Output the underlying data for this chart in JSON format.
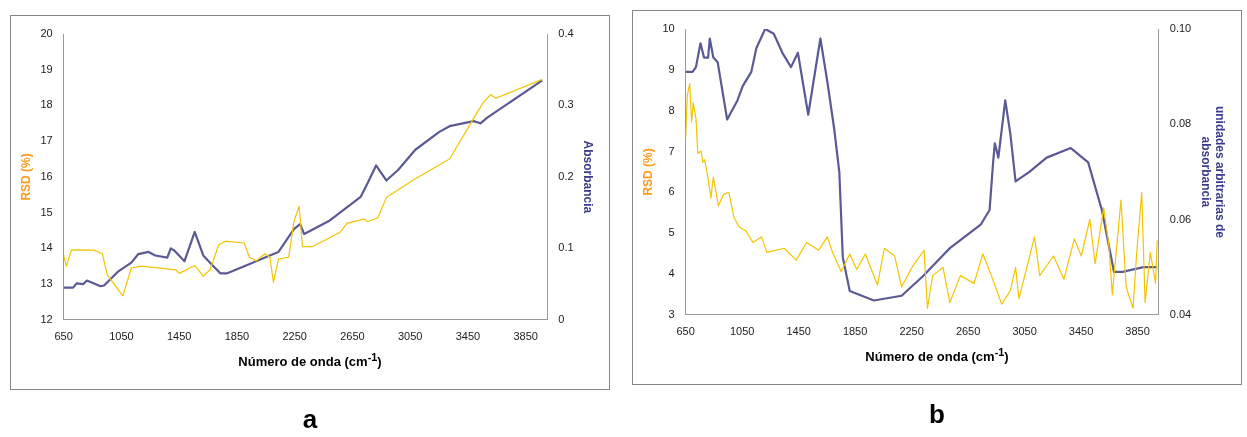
{
  "chart_data": [
    {
      "type": "line",
      "xlabel": "Número de onda (cm$^{-1}$)",
      "ylabel": "RSD (%)",
      "y2label": "Absorbancia",
      "annotations": [
        "a"
      ],
      "xlim": [
        650,
        4000
      ],
      "xticks": [
        650,
        1050,
        1450,
        1850,
        2250,
        2650,
        3050,
        3450,
        3850
      ],
      "ylim": [
        12,
        20
      ],
      "yticks": [
        12,
        13,
        14,
        15,
        16,
        17,
        18,
        19,
        20
      ],
      "y2lim": [
        0,
        0.4
      ],
      "y2ticks": [
        0,
        0.1,
        0.2,
        0.3,
        0.4
      ],
      "grid": false,
      "legend": false,
      "marker": "none",
      "line_style": "solid",
      "series": [
        {
          "color": "#f5c400",
          "x": [
            650,
            669,
            705,
            859,
            918,
            953,
            1060,
            1119,
            1190,
            1427,
            1451,
            1558,
            1617,
            1664,
            1724,
            1771,
            1901,
            1937,
            1984,
            2044,
            2079,
            2103,
            2138,
            2209,
            2245,
            2281,
            2304,
            2375,
            2565,
            2612,
            2731,
            2755,
            2826,
            2885,
            3086,
            3323,
            3442,
            3513,
            3560,
            3608,
            3643,
            3965
          ],
          "values": [
            13.8,
            13.5,
            13.96,
            13.95,
            13.85,
            13.25,
            12.67,
            13.45,
            13.5,
            13.4,
            13.3,
            13.52,
            13.22,
            13.4,
            14.1,
            14.2,
            14.15,
            13.75,
            13.65,
            13.85,
            13.75,
            13.05,
            13.7,
            13.75,
            14.75,
            15.18,
            14.05,
            14.05,
            14.45,
            14.7,
            14.82,
            14.75,
            14.85,
            15.42,
            15.95,
            16.5,
            17.31,
            17.8,
            18.1,
            18.3,
            18.2,
            18.73
          ]
        },
        {
          "color": "#5a5a96",
          "axis": "y2",
          "x": [
            650,
            716,
            740,
            787,
            811,
            906,
            930,
            1024,
            1119,
            1167,
            1238,
            1285,
            1368,
            1392,
            1416,
            1487,
            1558,
            1617,
            1664,
            1735,
            1783,
            1901,
            2020,
            2138,
            2245,
            2288,
            2316,
            2494,
            2707,
            2755,
            2814,
            2885,
            2968,
            3086,
            3252,
            3323,
            3489,
            3537,
            3584,
            3965
          ],
          "values": [
            0.045,
            0.045,
            0.051,
            0.05,
            0.055,
            0.047,
            0.048,
            0.067,
            0.08,
            0.092,
            0.095,
            0.09,
            0.087,
            0.1,
            0.097,
            0.082,
            0.123,
            0.09,
            0.08,
            0.065,
            0.065,
            0.075,
            0.085,
            0.095,
            0.127,
            0.134,
            0.12,
            0.139,
            0.172,
            0.191,
            0.216,
            0.195,
            0.21,
            0.238,
            0.263,
            0.271,
            0.278,
            0.275,
            0.283,
            0.335
          ]
        }
      ]
    },
    {
      "type": "line",
      "xlabel": "Número de onda (cm$^{-1}$)",
      "ylabel": "RSD (%)",
      "y2label": "unidades arbitrarias de absorbancia",
      "annotations": [
        "b"
      ],
      "xlim": [
        650,
        4000
      ],
      "xticks": [
        650,
        1050,
        1450,
        1850,
        2250,
        2650,
        3050,
        3450,
        3850
      ],
      "ylim": [
        3,
        10
      ],
      "yticks": [
        3,
        4,
        5,
        6,
        7,
        8,
        9,
        10
      ],
      "y2lim": [
        0.04,
        0.1
      ],
      "y2ticks": [
        {
          "value": 0.04,
          "label": "0.04"
        },
        {
          "value": 0.06,
          "label": "0.06"
        },
        {
          "value": 0.08,
          "label": "0.08"
        },
        {
          "value": 0.1,
          "label": "0.10"
        }
      ],
      "grid": false,
      "legend": false,
      "marker": "none",
      "line_style": "solid",
      "series": [
        {
          "color": "#f5c400",
          "x": [
            650,
            662,
            679,
            692,
            704,
            723,
            736,
            760,
            772,
            785,
            809,
            829,
            846,
            882,
            919,
            956,
            992,
            1029,
            1078,
            1127,
            1188,
            1225,
            1347,
            1433,
            1506,
            1592,
            1653,
            1690,
            1751,
            1812,
            1861,
            1922,
            2008,
            2057,
            2130,
            2179,
            2252,
            2338,
            2362,
            2399,
            2472,
            2521,
            2595,
            2692,
            2754,
            2815,
            2888,
            2949,
            2986,
            3010,
            3059,
            3120,
            3157,
            3255,
            3328,
            3402,
            3451,
            3512,
            3549,
            3610,
            3646,
            3671,
            3732,
            3769,
            3818,
            3842,
            3879,
            3903,
            3940,
            3977,
            3989
          ],
          "values": [
            7.34,
            8.38,
            8.66,
            7.72,
            8.19,
            7.81,
            6.96,
            7.01,
            6.73,
            6.8,
            6.33,
            5.86,
            6.38,
            5.67,
            5.95,
            6.0,
            5.39,
            5.15,
            5.05,
            4.77,
            4.91,
            4.53,
            4.63,
            4.34,
            4.77,
            4.58,
            4.91,
            4.53,
            4.06,
            4.49,
            4.11,
            4.49,
            3.73,
            4.63,
            4.44,
            3.68,
            4.16,
            4.58,
            3.16,
            3.96,
            4.16,
            3.3,
            3.96,
            3.77,
            4.49,
            3.96,
            3.26,
            3.59,
            4.16,
            3.4,
            4.06,
            4.91,
            3.96,
            4.44,
            3.87,
            4.86,
            4.44,
            5.34,
            4.25,
            5.62,
            4.72,
            3.49,
            5.81,
            3.68,
            3.16,
            4.44,
            6.0,
            3.3,
            4.53,
            3.77,
            4.82
          ]
        },
        {
          "color": "#5a5a96",
          "axis": "y2",
          "x": [
            650,
            699,
            723,
            755,
            780,
            809,
            821,
            846,
            877,
            944,
            980,
            1017,
            1054,
            1115,
            1151,
            1213,
            1274,
            1335,
            1396,
            1445,
            1518,
            1604,
            1653,
            1702,
            1738,
            1763,
            1812,
            1983,
            2179,
            2326,
            2521,
            2741,
            2802,
            2827,
            2839,
            2864,
            2913,
            2949,
            2986,
            3084,
            3206,
            3377,
            3500,
            3597,
            3683,
            3744,
            3891,
            3989
          ],
          "values": [
            0.091,
            0.091,
            0.092,
            0.097,
            0.094,
            0.094,
            0.098,
            0.094,
            0.093,
            0.081,
            0.083,
            0.085,
            0.088,
            0.091,
            0.096,
            0.1,
            0.099,
            0.095,
            0.092,
            0.095,
            0.082,
            0.098,
            0.089,
            0.079,
            0.07,
            0.052,
            0.045,
            0.043,
            0.044,
            0.048,
            0.054,
            0.059,
            0.062,
            0.072,
            0.076,
            0.073,
            0.085,
            0.078,
            0.068,
            0.07,
            0.073,
            0.075,
            0.072,
            0.062,
            0.049,
            0.049,
            0.05,
            0.05
          ]
        }
      ]
    }
  ]
}
